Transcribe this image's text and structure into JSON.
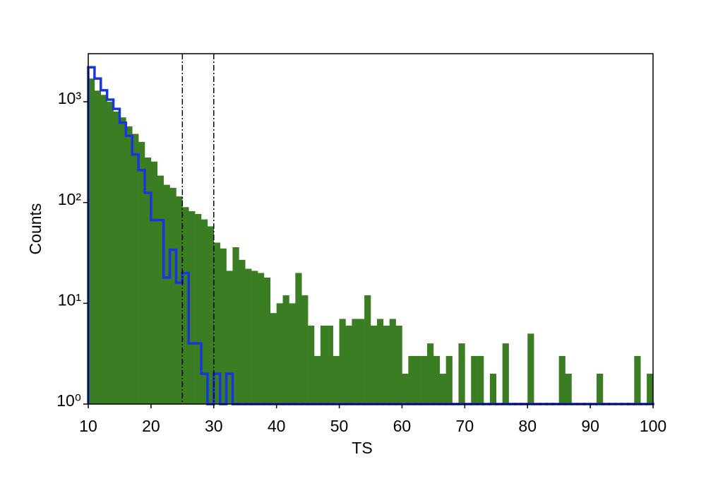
{
  "chart_data": {
    "type": "histogram",
    "xlabel": "TS",
    "ylabel": "Counts",
    "log_y": true,
    "bins": [
      10,
      11,
      12,
      13,
      14,
      15,
      16,
      17,
      18,
      19,
      20,
      21,
      22,
      23,
      24,
      25,
      26,
      27,
      28,
      29,
      30,
      31,
      32,
      33,
      34,
      35,
      36,
      37,
      38,
      39,
      40,
      41,
      42,
      43,
      44,
      45,
      46,
      47,
      48,
      49,
      50,
      51,
      52,
      53,
      54,
      55,
      56,
      57,
      58,
      59,
      60,
      61,
      62,
      63,
      64,
      65,
      66,
      67,
      68,
      69,
      70,
      71,
      72,
      73,
      74,
      75,
      76,
      77,
      78,
      79,
      80,
      81,
      82,
      83,
      84,
      85,
      86,
      87,
      88,
      89,
      90,
      91,
      92,
      93,
      94,
      95,
      96,
      97,
      98,
      99,
      100
    ],
    "series": [
      {
        "style": "bar",
        "color": "#3a7d22",
        "values": [
          1700,
          1290,
          1170,
          1000,
          800,
          700,
          570,
          480,
          400,
          280,
          255,
          185,
          150,
          140,
          115,
          90,
          82,
          77,
          68,
          58,
          40,
          35,
          21,
          36,
          27,
          22,
          21,
          20,
          18,
          8,
          10,
          12,
          10,
          20,
          12,
          6,
          3,
          6,
          6,
          3,
          7,
          6,
          7,
          7,
          12,
          6,
          7,
          6,
          7,
          6,
          2,
          3,
          3,
          3,
          4,
          3,
          2,
          3,
          0,
          4,
          0,
          3,
          3,
          0,
          2,
          0,
          4,
          0,
          0,
          0,
          5,
          0,
          0,
          0,
          0,
          3,
          2,
          0,
          0,
          0,
          0,
          2,
          0,
          0,
          0,
          0,
          0,
          3,
          0,
          2
        ]
      },
      {
        "style": "step",
        "color": "#1836e0",
        "values": [
          2200,
          1700,
          1300,
          1050,
          850,
          620,
          460,
          300,
          210,
          125,
          67,
          67,
          18,
          34,
          16,
          20,
          4,
          4,
          2,
          0,
          2,
          0,
          2,
          0,
          0,
          0,
          0,
          0,
          0,
          0,
          0,
          0,
          0,
          0,
          0,
          0,
          0,
          0,
          0,
          0,
          0,
          0,
          0,
          0,
          0,
          0,
          0,
          0,
          0,
          0,
          0,
          0,
          0,
          0,
          0,
          0,
          0,
          0,
          0,
          0,
          0,
          0,
          0,
          0,
          0,
          0,
          0,
          0,
          0,
          0,
          0,
          0,
          0,
          0,
          0,
          0,
          0,
          0,
          0,
          0,
          0,
          0,
          0,
          0,
          0,
          0,
          0,
          0,
          0,
          0
        ]
      }
    ],
    "vlines": [
      25,
      30
    ],
    "xlim": [
      10,
      100
    ],
    "xticks": [
      10,
      20,
      30,
      40,
      50,
      60,
      70,
      80,
      90,
      100
    ],
    "ylim": [
      1,
      3000
    ],
    "yticks": [
      {
        "value": 1,
        "label": "10⁰"
      },
      {
        "value": 10,
        "label": "10¹"
      },
      {
        "value": 100,
        "label": "10²"
      },
      {
        "value": 1000,
        "label": "10³"
      }
    ]
  }
}
